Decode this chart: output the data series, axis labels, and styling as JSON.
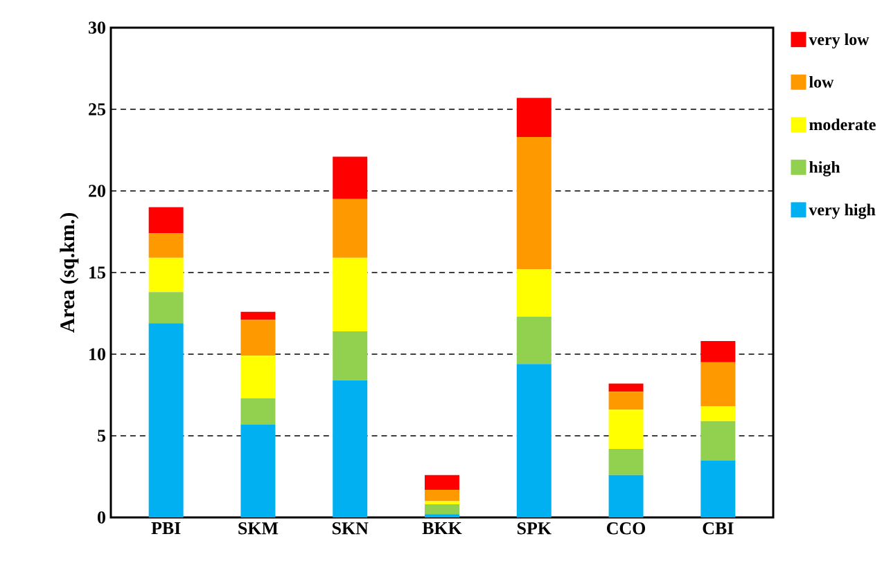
{
  "chart_data": {
    "type": "bar",
    "stacked": true,
    "ylabel": "Area (sq.km.)",
    "categories": [
      "PBI",
      "SKM",
      "SKN",
      "BKK",
      "SPK",
      "CCO",
      "CBI"
    ],
    "series": [
      {
        "name": "very high",
        "color": "#00b0f0",
        "values": [
          11.9,
          5.7,
          8.4,
          0.2,
          9.4,
          2.6,
          3.5
        ]
      },
      {
        "name": "high",
        "color": "#92d050",
        "values": [
          1.9,
          1.6,
          3.0,
          0.6,
          2.9,
          1.6,
          2.4
        ]
      },
      {
        "name": "moderate",
        "color": "#ffff00",
        "values": [
          2.1,
          2.6,
          4.5,
          0.2,
          2.9,
          2.4,
          0.9
        ]
      },
      {
        "name": "low",
        "color": "#ff9900",
        "values": [
          1.5,
          2.2,
          3.6,
          0.7,
          8.1,
          1.1,
          2.7
        ]
      },
      {
        "name": "very low",
        "color": "#ff0000",
        "values": [
          1.6,
          0.5,
          2.6,
          0.9,
          2.4,
          0.5,
          1.3
        ]
      }
    ],
    "ylim": [
      0,
      30
    ],
    "yticks": [
      0,
      5,
      10,
      15,
      20,
      25,
      30
    ],
    "grid": "y",
    "line_style": "dashed",
    "legend": "right"
  }
}
